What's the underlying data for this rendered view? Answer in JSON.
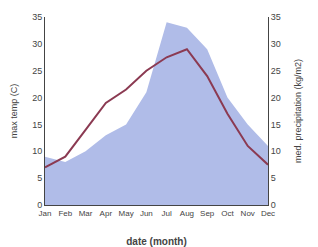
{
  "chart_data": {
    "type": "line",
    "xlabel": "date (month)",
    "ylabel": "max temp (C)",
    "y2label": "med. precipitation (kg/m2)",
    "categories": [
      "Jan",
      "Feb",
      "Mar",
      "Apr",
      "May",
      "Jun",
      "Jul",
      "Aug",
      "Sep",
      "Oct",
      "Nov",
      "Dec"
    ],
    "series": [
      {
        "type": "area",
        "color": "#b0bce8",
        "axis": "y2",
        "values": [
          9,
          8,
          10,
          13,
          15,
          21,
          34,
          33,
          29,
          20,
          15,
          11
        ]
      },
      {
        "type": "line",
        "color": "#8B3A52",
        "values": [
          7.0,
          9.0,
          14.0,
          19.0,
          21.5,
          25.0,
          27.5,
          29.0,
          24.0,
          17.0,
          11.0,
          7.5
        ]
      }
    ],
    "ylim": [
      0,
      35
    ],
    "yticks": [
      0,
      5,
      10,
      15,
      20,
      25,
      30,
      35
    ],
    "y2lim": [
      0,
      35
    ],
    "y2ticks": [
      0,
      5,
      10,
      15,
      20,
      25,
      30,
      35
    ],
    "grid": false
  }
}
